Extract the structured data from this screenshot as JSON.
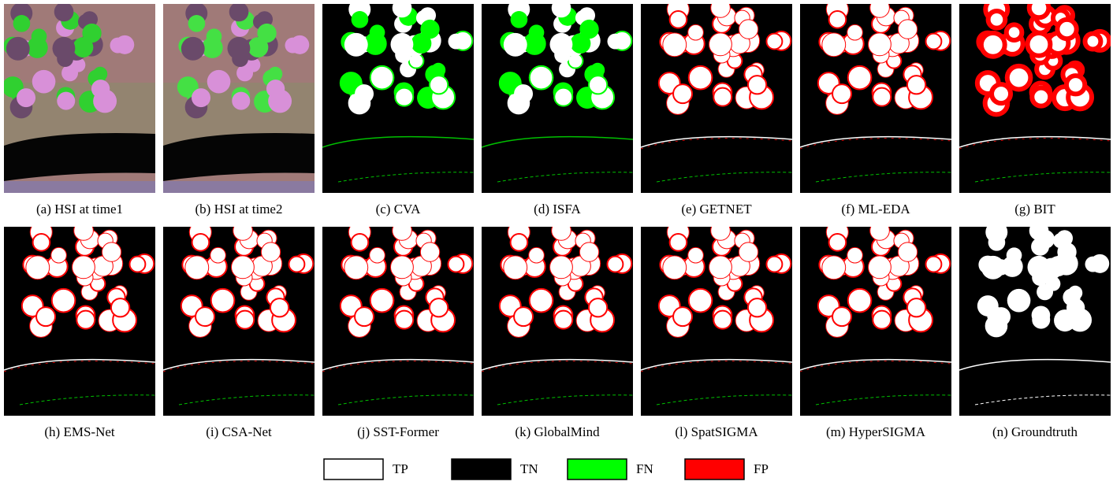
{
  "panels": [
    {
      "caption": "(a) HSI at  time1"
    },
    {
      "caption": "(b) HSI at  time2"
    },
    {
      "caption": "(c) CVA"
    },
    {
      "caption": "(d) ISFA"
    },
    {
      "caption": "(e) GETNET"
    },
    {
      "caption": "(f) ML-EDA"
    },
    {
      "caption": "(g) BIT"
    },
    {
      "caption": "(h) EMS-Net"
    },
    {
      "caption": "(i) CSA-Net"
    },
    {
      "caption": "(j) SST-Former"
    },
    {
      "caption": "(k) GlobalMind"
    },
    {
      "caption": "(l) SpatSIGMA"
    },
    {
      "caption": "(m) HyperSIGMA"
    },
    {
      "caption": "(n) Groundtruth"
    }
  ],
  "legend": [
    {
      "label": "TP",
      "color": "#ffffff"
    },
    {
      "label": "TN",
      "color": "#000000"
    },
    {
      "label": "FN",
      "color": "#00ff00"
    },
    {
      "label": "FP",
      "color": "#ff0000"
    }
  ]
}
